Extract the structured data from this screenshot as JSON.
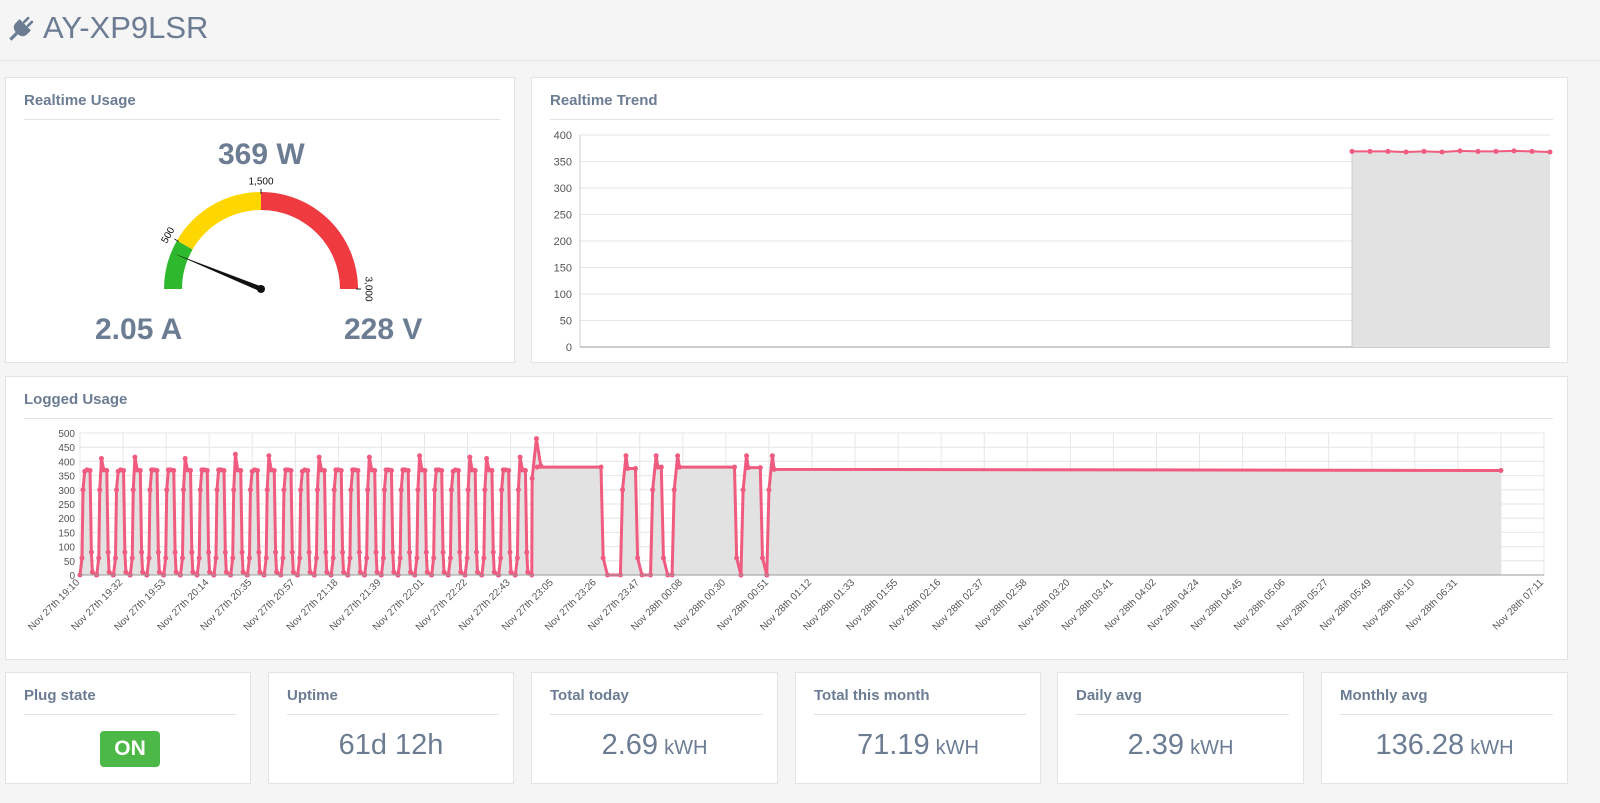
{
  "header": {
    "title": "AY-XP9LSR",
    "icon": "plug-icon"
  },
  "realtime_usage": {
    "title": "Realtime Usage",
    "power": "369 W",
    "current": "2.05 A",
    "voltage": "228 V",
    "gauge": {
      "min": 0,
      "max": 3000,
      "value": 369,
      "ticks": [
        "500",
        "1,500",
        "3,000"
      ],
      "bands": [
        {
          "from": 0,
          "to": 500,
          "color": "#2eb82e"
        },
        {
          "from": 500,
          "to": 1500,
          "color": "#ffd700"
        },
        {
          "from": 1500,
          "to": 3000,
          "color": "#ef3b3f"
        }
      ]
    }
  },
  "realtime_trend": {
    "title": "Realtime Trend",
    "chart_data": {
      "type": "area",
      "ylim": [
        0,
        400
      ],
      "yticks": [
        "400",
        "350",
        "300",
        "250",
        "200",
        "150",
        "100",
        "50",
        "0"
      ],
      "series": [
        {
          "values": [
            369,
            369,
            369,
            368,
            369,
            368,
            370,
            369,
            369,
            370,
            369,
            368
          ]
        }
      ],
      "grid": true,
      "line_color": "#f05b80",
      "fill_color": "#e2e2e2"
    }
  },
  "logged_usage": {
    "title": "Logged Usage",
    "chart_data": {
      "type": "area",
      "ylim": [
        0,
        500
      ],
      "yticks": [
        "500",
        "450",
        "400",
        "350",
        "300",
        "250",
        "200",
        "150",
        "100",
        "50",
        "0"
      ],
      "categories": [
        "Nov 27th 19:10",
        "Nov 27th 19:32",
        "Nov 27th 19:53",
        "Nov 27th 20:14",
        "Nov 27th 20:35",
        "Nov 27th 20:57",
        "Nov 27th 21:18",
        "Nov 27th 21:39",
        "Nov 27th 22:01",
        "Nov 27th 22:22",
        "Nov 27th 22:43",
        "Nov 27th 23:05",
        "Nov 27th 23:26",
        "Nov 27th 23:47",
        "Nov 28th 00:08",
        "Nov 28th 00:30",
        "Nov 28th 00:51",
        "Nov 28th 01:12",
        "Nov 28th 01:33",
        "Nov 28th 01:55",
        "Nov 28th 02:16",
        "Nov 28th 02:37",
        "Nov 28th 02:58",
        "Nov 28th 03:20",
        "Nov 28th 03:41",
        "Nov 28th 04:02",
        "Nov 28th 04:24",
        "Nov 28th 04:45",
        "Nov 28th 05:06",
        "Nov 28th 05:27",
        "Nov 28th 05:49",
        "Nov 28th 06:10",
        "Nov 28th 06:31",
        "Nov 28th 07:11"
      ],
      "cycling_until_index": 10.5,
      "cycles": 27,
      "cycle_peaks": [
        365,
        410,
        365,
        415,
        370,
        370,
        410,
        370,
        370,
        425,
        365,
        420,
        370,
        365,
        415,
        370,
        370,
        415,
        370,
        370,
        420,
        370,
        365,
        415,
        410,
        370,
        415
      ],
      "steady_segments": [
        {
          "from": 10.5,
          "to": 12.1,
          "value": 380
        },
        {
          "from": 12.6,
          "to": 12.9,
          "value": 375
        },
        {
          "from": 13.3,
          "to": 13.5,
          "value": 380
        },
        {
          "from": 13.8,
          "to": 15.2,
          "value": 380
        },
        {
          "from": 15.4,
          "to": 15.8,
          "value": 378
        },
        {
          "from": 16.0,
          "to": 33.0,
          "value": 372
        }
      ],
      "spike_peak": 480,
      "grid": true,
      "line_color": "#f05b80",
      "fill_color": "#e2e2e2"
    }
  },
  "stats": [
    {
      "title": "Plug state",
      "value": "ON",
      "unit": ""
    },
    {
      "title": "Uptime",
      "value": "61d 12h",
      "unit": ""
    },
    {
      "title": "Total today",
      "value": "2.69",
      "unit": "kWH"
    },
    {
      "title": "Total this month",
      "value": "71.19",
      "unit": "kWH"
    },
    {
      "title": "Daily avg",
      "value": "2.39",
      "unit": "kWH"
    },
    {
      "title": "Monthly avg",
      "value": "136.28",
      "unit": "kWH"
    }
  ]
}
